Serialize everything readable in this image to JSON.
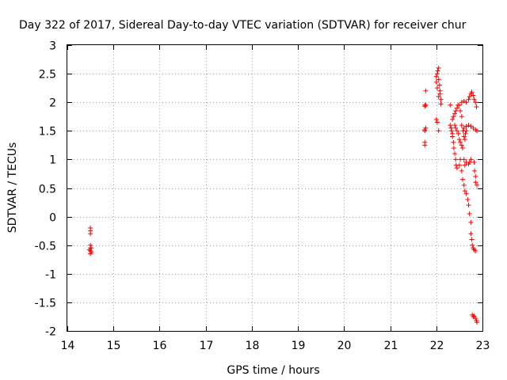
{
  "chart_data": {
    "type": "scatter",
    "title": "Day 322 of 2017, Sidereal Day-to-day VTEC variation (SDTVAR) for receiver chur",
    "xlabel": "GPS time / hours",
    "ylabel": "SDTVAR / TECUs",
    "xlim": [
      14,
      23
    ],
    "ylim": [
      -2,
      3
    ],
    "xticks": [
      "14",
      "15",
      "16",
      "17",
      "18",
      "19",
      "20",
      "21",
      "22",
      "23"
    ],
    "yticks": [
      "3",
      "2.5",
      "2",
      "1.5",
      "1",
      "0.5",
      "0",
      "-0.5",
      "-1",
      "-1.5",
      "-2"
    ],
    "grid": true,
    "marker": "+",
    "color": "#ff0000",
    "series": [
      {
        "name": "SDTVAR",
        "points": [
          [
            14.5,
            -0.2
          ],
          [
            14.5,
            -0.25
          ],
          [
            14.5,
            -0.3
          ],
          [
            14.5,
            -0.5
          ],
          [
            14.5,
            -0.55
          ],
          [
            14.5,
            -0.6
          ],
          [
            14.5,
            -0.65
          ],
          [
            14.52,
            -0.55
          ],
          [
            14.52,
            -0.62
          ],
          [
            14.48,
            -0.58
          ],
          [
            21.75,
            1.95
          ],
          [
            21.75,
            1.93
          ],
          [
            21.75,
            1.5
          ],
          [
            21.75,
            1.52
          ],
          [
            21.75,
            1.3
          ],
          [
            21.75,
            1.25
          ],
          [
            21.77,
            2.2
          ],
          [
            21.77,
            1.55
          ],
          [
            21.77,
            1.95
          ],
          [
            22.0,
            1.7
          ],
          [
            22.02,
            1.65
          ],
          [
            22.05,
            1.5
          ],
          [
            22.0,
            2.35
          ],
          [
            22.0,
            2.45
          ],
          [
            22.02,
            2.5
          ],
          [
            22.03,
            2.55
          ],
          [
            22.05,
            2.6
          ],
          [
            22.05,
            2.4
          ],
          [
            22.07,
            2.3
          ],
          [
            22.08,
            2.2
          ],
          [
            22.08,
            2.15
          ],
          [
            22.1,
            2.05
          ],
          [
            22.1,
            1.97
          ],
          [
            22.05,
            2.1
          ],
          [
            22.02,
            2.25
          ],
          [
            22.3,
            1.95
          ],
          [
            22.3,
            1.6
          ],
          [
            22.32,
            1.55
          ],
          [
            22.33,
            1.5
          ],
          [
            22.35,
            1.45
          ],
          [
            22.35,
            1.4
          ],
          [
            22.37,
            1.3
          ],
          [
            22.38,
            1.2
          ],
          [
            22.4,
            1.1
          ],
          [
            22.42,
            1.0
          ],
          [
            22.43,
            0.9
          ],
          [
            22.45,
            0.85
          ],
          [
            22.5,
            0.9
          ],
          [
            22.52,
            1.0
          ],
          [
            22.35,
            1.7
          ],
          [
            22.37,
            1.75
          ],
          [
            22.4,
            1.8
          ],
          [
            22.42,
            1.85
          ],
          [
            22.45,
            1.9
          ],
          [
            22.47,
            1.95
          ],
          [
            22.4,
            1.6
          ],
          [
            22.42,
            1.55
          ],
          [
            22.45,
            1.5
          ],
          [
            22.48,
            1.45
          ],
          [
            22.5,
            1.35
          ],
          [
            22.52,
            1.3
          ],
          [
            22.55,
            1.25
          ],
          [
            22.57,
            1.2
          ],
          [
            22.6,
            1.0
          ],
          [
            22.62,
            0.9
          ],
          [
            22.65,
            0.95
          ],
          [
            22.7,
            0.92
          ],
          [
            22.72,
            0.95
          ],
          [
            22.75,
            1.0
          ],
          [
            22.5,
            1.95
          ],
          [
            22.52,
            1.85
          ],
          [
            22.55,
            1.75
          ],
          [
            22.55,
            1.6
          ],
          [
            22.58,
            1.5
          ],
          [
            22.6,
            1.4
          ],
          [
            22.62,
            1.35
          ],
          [
            22.63,
            1.45
          ],
          [
            22.65,
            1.5
          ],
          [
            22.55,
            2.0
          ],
          [
            22.6,
            2.02
          ],
          [
            22.65,
            2.0
          ],
          [
            22.7,
            2.05
          ],
          [
            22.72,
            2.1
          ],
          [
            22.75,
            2.15
          ],
          [
            22.77,
            2.18
          ],
          [
            22.8,
            2.12
          ],
          [
            22.82,
            2.05
          ],
          [
            22.85,
            2.0
          ],
          [
            22.87,
            1.92
          ],
          [
            22.6,
            1.55
          ],
          [
            22.65,
            1.58
          ],
          [
            22.7,
            1.6
          ],
          [
            22.75,
            1.58
          ],
          [
            22.8,
            1.55
          ],
          [
            22.85,
            1.52
          ],
          [
            22.88,
            1.5
          ],
          [
            22.55,
            0.8
          ],
          [
            22.57,
            0.65
          ],
          [
            22.6,
            0.55
          ],
          [
            22.62,
            0.45
          ],
          [
            22.65,
            0.4
          ],
          [
            22.68,
            0.3
          ],
          [
            22.7,
            0.2
          ],
          [
            22.72,
            0.05
          ],
          [
            22.75,
            -0.1
          ],
          [
            22.75,
            -0.3
          ],
          [
            22.77,
            -0.4
          ],
          [
            22.78,
            -0.5
          ],
          [
            22.8,
            -0.55
          ],
          [
            22.82,
            -0.58
          ],
          [
            22.85,
            -0.6
          ],
          [
            22.82,
            0.95
          ],
          [
            22.83,
            0.8
          ],
          [
            22.85,
            0.7
          ],
          [
            22.85,
            0.6
          ],
          [
            22.88,
            0.55
          ],
          [
            22.78,
            -1.72
          ],
          [
            22.8,
            -1.75
          ],
          [
            22.82,
            -1.74
          ],
          [
            22.85,
            -1.78
          ],
          [
            22.87,
            -1.82
          ],
          [
            22.88,
            -1.85
          ]
        ]
      }
    ]
  }
}
